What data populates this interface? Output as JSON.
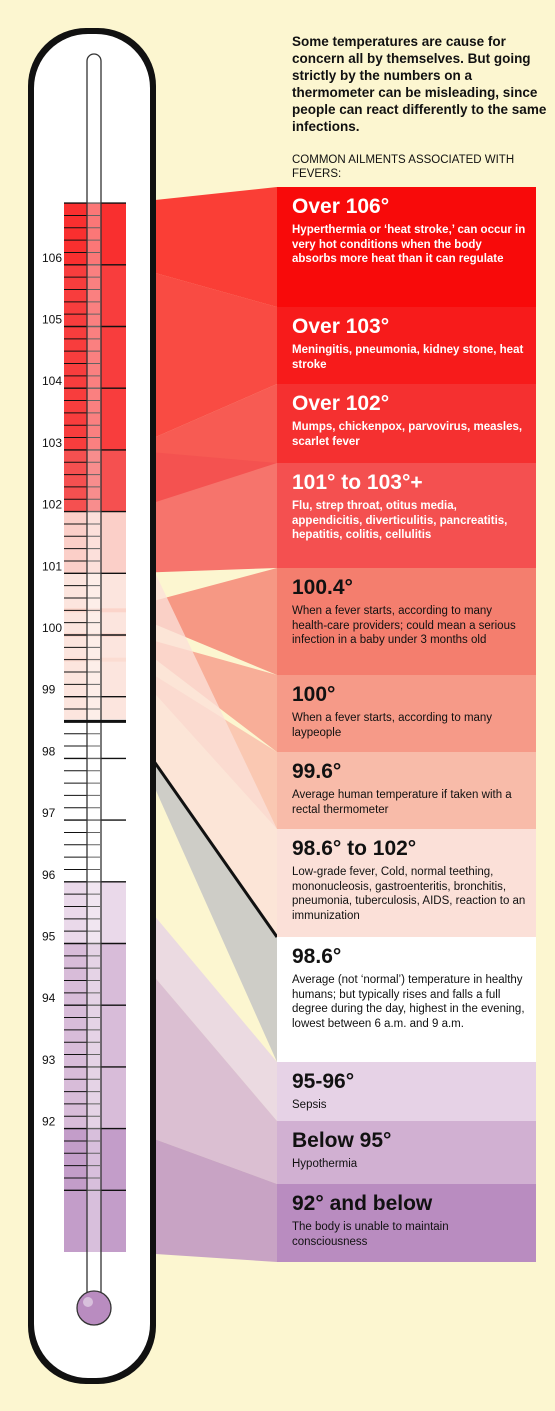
{
  "intro": "Some temperatures are cause for concern all by themselves. But going strictly by the numbers on a thermometer can be misleading, since people can react differently to the same infections.",
  "subhead": "COMMON AILMENTS ASSOCIATED WITH FEVERS:",
  "scale": {
    "min": 90,
    "max": 107,
    "labels": [
      92,
      93,
      94,
      95,
      96,
      97,
      98,
      99,
      100,
      101,
      102,
      103,
      104,
      105,
      106
    ]
  },
  "ranges": [
    {
      "id": "over-106",
      "title": "Over 106°",
      "desc": "Hyperthermia or  ‘heat stroke,’ can occur in very hot conditions when the body absorbs more heat than it can regulate",
      "temp_from": 106,
      "temp_to": 107,
      "color": "#f80a0a",
      "text": "light"
    },
    {
      "id": "over-103",
      "title": "Over 103°",
      "desc": "Meningitis, pneumonia, kidney stone, heat stroke",
      "temp_from": 103,
      "temp_to": 106,
      "color": "#f71b1b",
      "text": "light"
    },
    {
      "id": "over-102",
      "title": "Over 102°",
      "desc": "Mumps, chickenpox, parvovirus, measles, scarlet fever",
      "temp_from": 102,
      "temp_to": 103,
      "color": "#f53030",
      "text": "light"
    },
    {
      "id": "101-to-103",
      "title": "101° to 103°+",
      "desc": "Flu, strep throat, otitus media, appendicitis, diverticulitis, pancreatitis, hepatitis, colitis, cellulitis",
      "temp_from": 101,
      "temp_to": 103,
      "color": "#f45050",
      "text": "light"
    },
    {
      "id": "100-4",
      "title": "100.4°",
      "desc": "When a fever starts, according to many health-care providers; could mean a serious infection in a baby under 3 months old",
      "temp_from": 100.4,
      "temp_to": 100.4,
      "color": "#f47e6e",
      "text": "dark"
    },
    {
      "id": "100",
      "title": "100°",
      "desc": "When a fever starts, according to many laypeople",
      "temp_from": 100,
      "temp_to": 100,
      "color": "#f69a88",
      "text": "dark"
    },
    {
      "id": "99-6",
      "title": "99.6°",
      "desc": "Average human temperature if taken with a rectal thermometer",
      "temp_from": 99.6,
      "temp_to": 99.6,
      "color": "#f8bba9",
      "text": "dark"
    },
    {
      "id": "98-6-to-102",
      "title": "98.6° to 102°",
      "desc": "Low-grade fever, Cold, normal teething, mononucleosis, gastroenteritis, bronchitis, pneumonia, tuberculosis, AIDS, reaction to an immunization",
      "temp_from": 98.6,
      "temp_to": 102,
      "color": "#fbe0d8",
      "text": "dark"
    },
    {
      "id": "98-6",
      "title": "98.6°",
      "desc": "Average (not ‘normal’) temperature in healthy humans; but  typically rises and falls a full degree during the day, highest in the evening, lowest between 6 a.m. and 9 a.m.",
      "temp_from": 98.6,
      "temp_to": 98.6,
      "color": "#ffffff",
      "text": "dark"
    },
    {
      "id": "95-96",
      "title": "95-96°",
      "desc": "Sepsis",
      "temp_from": 95,
      "temp_to": 96,
      "color": "#e6d2e6",
      "text": "dark"
    },
    {
      "id": "below-95",
      "title": "Below 95°",
      "desc": "Hypothermia",
      "temp_from": 92,
      "temp_to": 95,
      "color": "#d1b0d2",
      "text": "dark"
    },
    {
      "id": "92-and-below",
      "title": "92° and below",
      "desc": "The body is unable to maintain consciousness",
      "temp_from": 90,
      "temp_to": 92,
      "color": "#b98cc0",
      "text": "dark"
    }
  ],
  "normal_marker": 98.6
}
